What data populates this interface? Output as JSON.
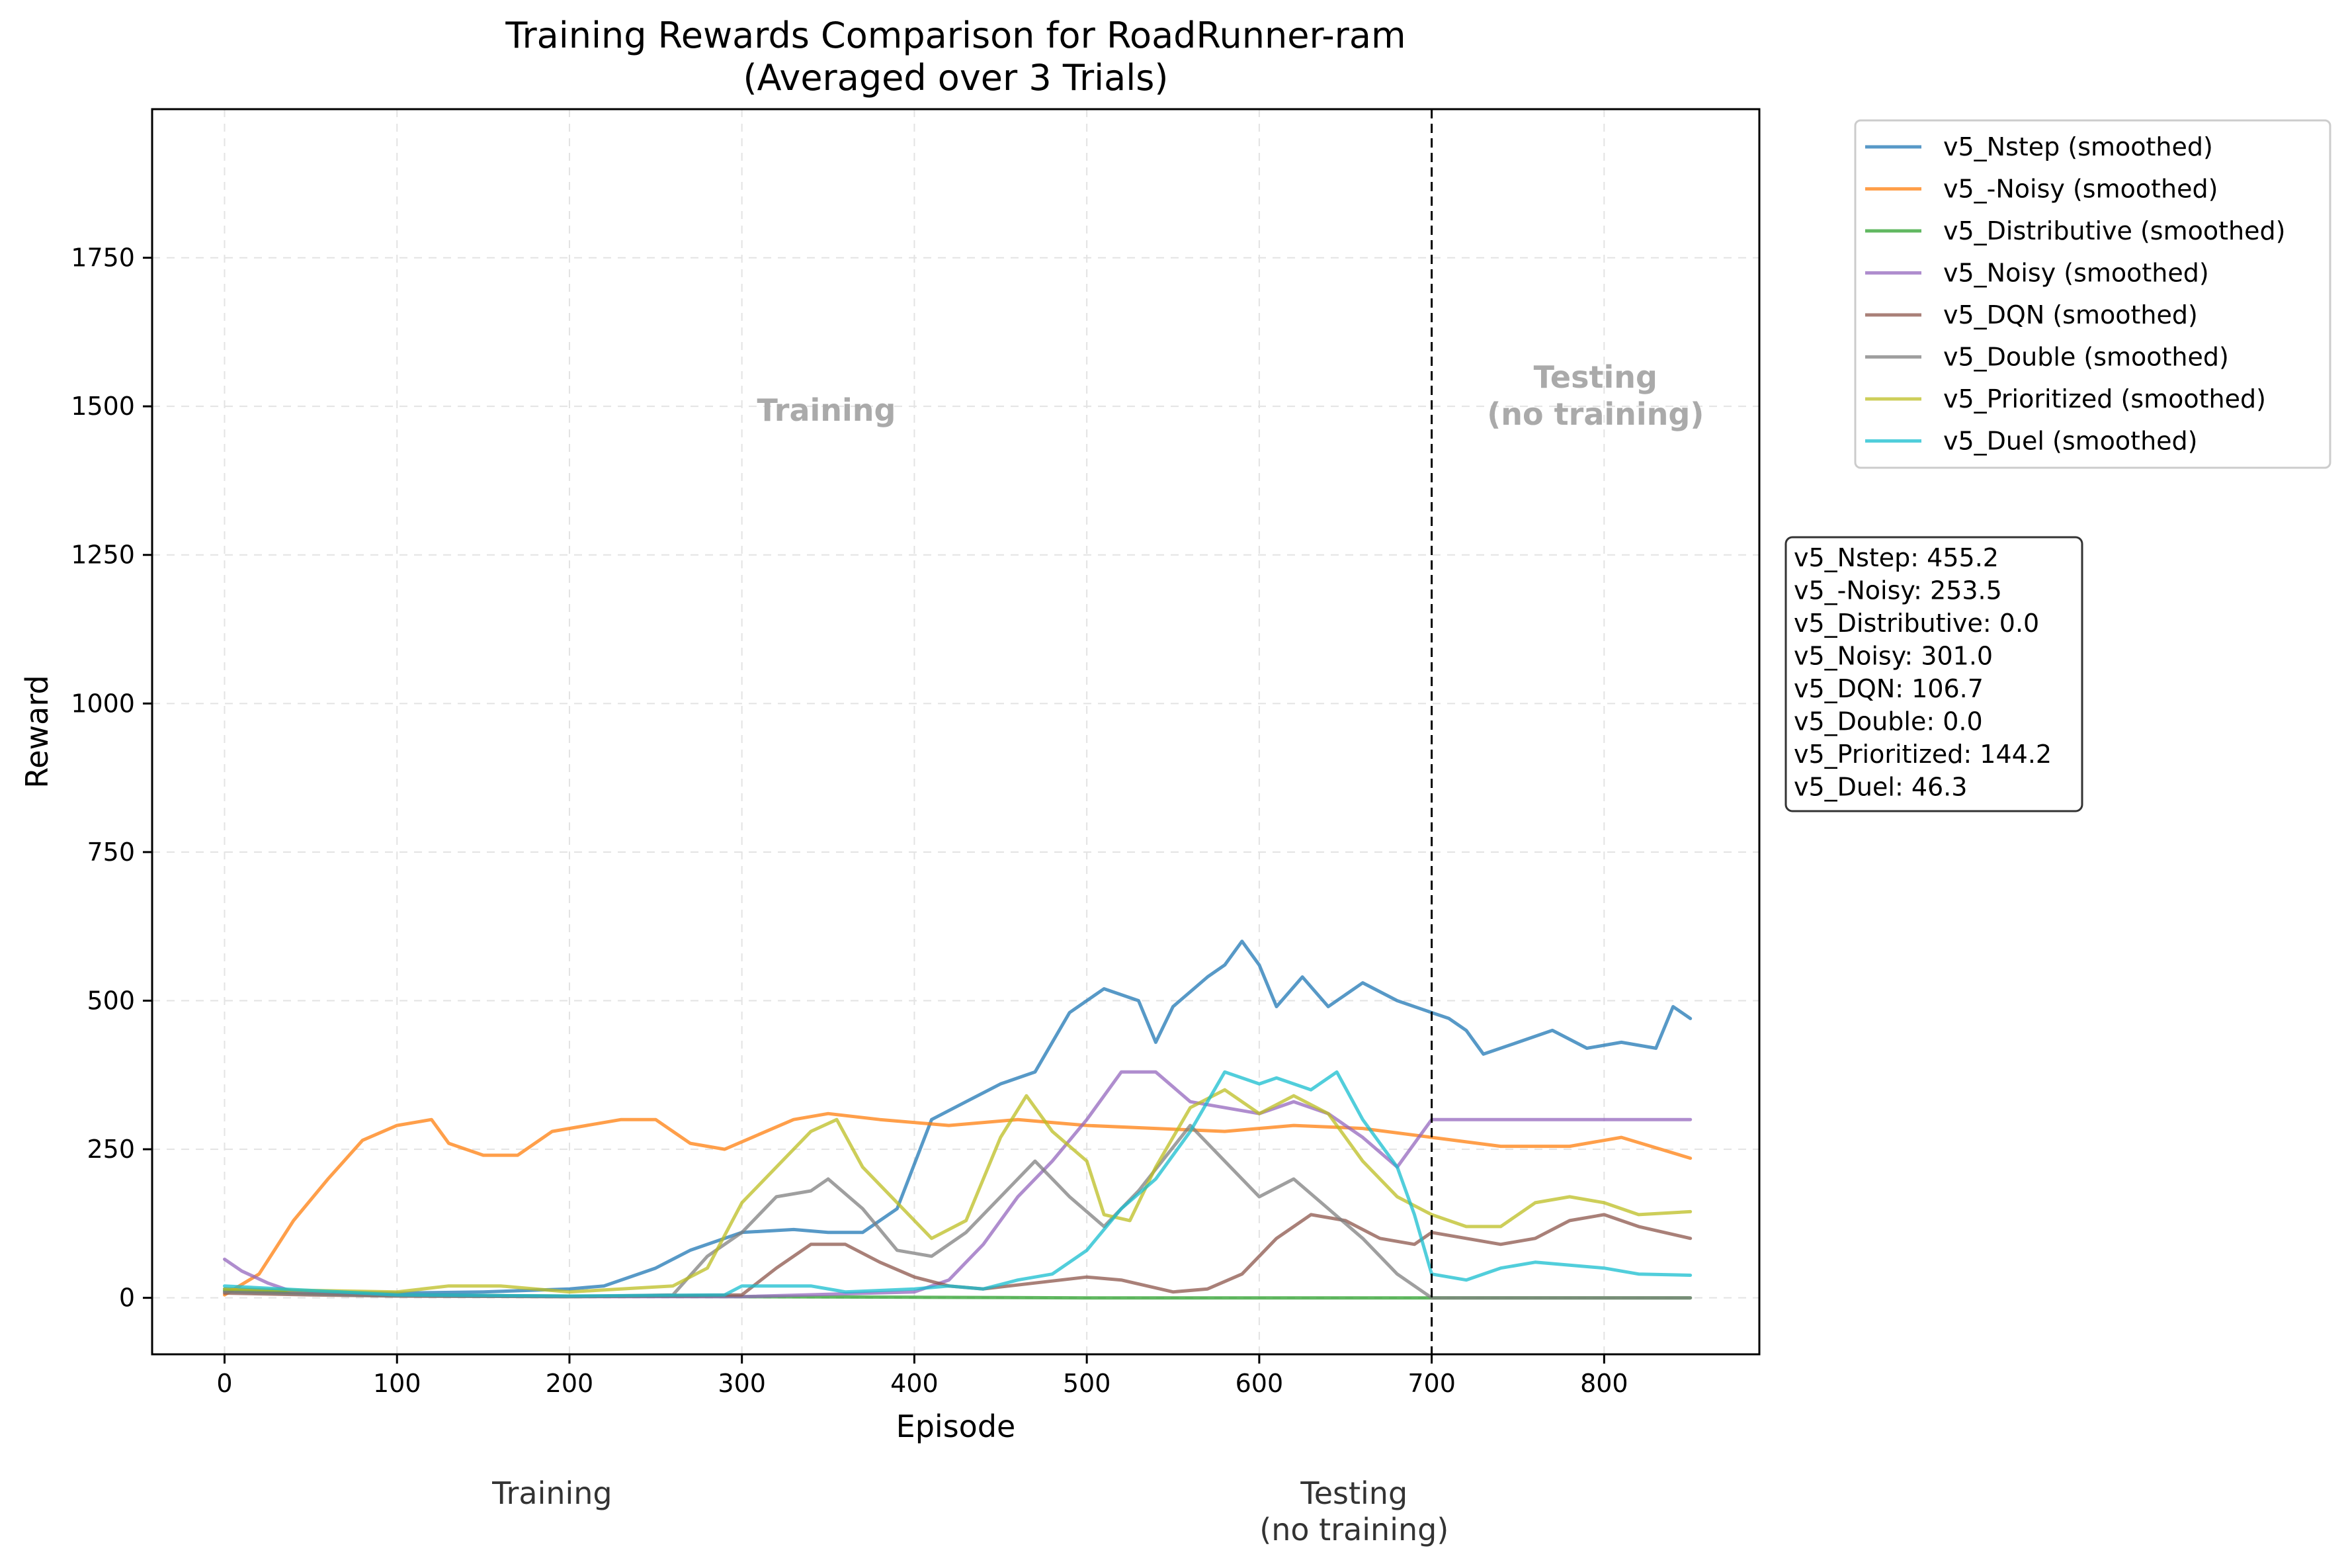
{
  "chart_data": {
    "type": "line",
    "title_line1": "Training Rewards Comparison for RoadRunner-ram",
    "title_line2": "(Averaged over 3 Trials)",
    "xlabel": "Episode",
    "ylabel": "Reward",
    "xlim": [
      -42,
      890
    ],
    "ylim": [
      -95,
      2000
    ],
    "xticks": [
      0,
      100,
      200,
      300,
      400,
      500,
      600,
      700,
      800
    ],
    "yticks": [
      0,
      250,
      500,
      750,
      1000,
      1250,
      1500,
      1750
    ],
    "grid": true,
    "divider_x": 700,
    "region_labels": {
      "training": "Training",
      "testing_line1": "Testing",
      "testing_line2": "(no training)"
    },
    "phase_labels": {
      "training": "Training",
      "testing_line1": "Testing",
      "testing_line2": "(no training)"
    },
    "legend_position": "outside upper right",
    "series": [
      {
        "name": "v5_Nstep (smoothed)",
        "color": "#1f77b4",
        "points": [
          [
            0,
            15
          ],
          [
            50,
            10
          ],
          [
            100,
            8
          ],
          [
            150,
            10
          ],
          [
            200,
            15
          ],
          [
            220,
            20
          ],
          [
            250,
            50
          ],
          [
            270,
            80
          ],
          [
            300,
            110
          ],
          [
            330,
            115
          ],
          [
            350,
            110
          ],
          [
            370,
            110
          ],
          [
            390,
            150
          ],
          [
            410,
            300
          ],
          [
            430,
            330
          ],
          [
            450,
            360
          ],
          [
            470,
            380
          ],
          [
            490,
            480
          ],
          [
            510,
            520
          ],
          [
            530,
            500
          ],
          [
            540,
            430
          ],
          [
            550,
            490
          ],
          [
            570,
            540
          ],
          [
            580,
            560
          ],
          [
            590,
            600
          ],
          [
            600,
            560
          ],
          [
            610,
            490
          ],
          [
            625,
            540
          ],
          [
            640,
            490
          ],
          [
            660,
            530
          ],
          [
            680,
            500
          ],
          [
            700,
            480
          ],
          [
            710,
            470
          ],
          [
            720,
            450
          ],
          [
            730,
            410
          ],
          [
            750,
            430
          ],
          [
            770,
            450
          ],
          [
            790,
            420
          ],
          [
            810,
            430
          ],
          [
            830,
            420
          ],
          [
            840,
            490
          ],
          [
            850,
            470
          ]
        ]
      },
      {
        "name": "v5_-Noisy (smoothed)",
        "color": "#ff7f0e",
        "points": [
          [
            0,
            5
          ],
          [
            20,
            40
          ],
          [
            40,
            130
          ],
          [
            60,
            200
          ],
          [
            80,
            265
          ],
          [
            100,
            290
          ],
          [
            120,
            300
          ],
          [
            130,
            260
          ],
          [
            150,
            240
          ],
          [
            170,
            240
          ],
          [
            190,
            280
          ],
          [
            210,
            290
          ],
          [
            230,
            300
          ],
          [
            250,
            300
          ],
          [
            270,
            260
          ],
          [
            290,
            250
          ],
          [
            310,
            275
          ],
          [
            330,
            300
          ],
          [
            350,
            310
          ],
          [
            380,
            300
          ],
          [
            420,
            290
          ],
          [
            460,
            300
          ],
          [
            500,
            290
          ],
          [
            540,
            285
          ],
          [
            580,
            280
          ],
          [
            620,
            290
          ],
          [
            660,
            285
          ],
          [
            700,
            270
          ],
          [
            740,
            255
          ],
          [
            780,
            255
          ],
          [
            810,
            270
          ],
          [
            850,
            235
          ]
        ]
      },
      {
        "name": "v5_Distributive (smoothed)",
        "color": "#2ca02c",
        "points": [
          [
            0,
            12
          ],
          [
            50,
            8
          ],
          [
            100,
            5
          ],
          [
            200,
            3
          ],
          [
            300,
            2
          ],
          [
            400,
            1
          ],
          [
            500,
            0
          ],
          [
            600,
            0
          ],
          [
            700,
            0
          ],
          [
            850,
            0
          ]
        ]
      },
      {
        "name": "v5_Noisy (smoothed)",
        "color": "#9467bd",
        "points": [
          [
            0,
            65
          ],
          [
            10,
            45
          ],
          [
            25,
            25
          ],
          [
            40,
            10
          ],
          [
            80,
            5
          ],
          [
            200,
            2
          ],
          [
            300,
            2
          ],
          [
            400,
            10
          ],
          [
            420,
            30
          ],
          [
            440,
            90
          ],
          [
            460,
            170
          ],
          [
            480,
            230
          ],
          [
            500,
            300
          ],
          [
            520,
            380
          ],
          [
            540,
            380
          ],
          [
            560,
            330
          ],
          [
            580,
            320
          ],
          [
            600,
            310
          ],
          [
            620,
            330
          ],
          [
            640,
            310
          ],
          [
            660,
            270
          ],
          [
            680,
            220
          ],
          [
            700,
            300
          ],
          [
            850,
            300
          ]
        ]
      },
      {
        "name": "v5_DQN (smoothed)",
        "color": "#8c564b",
        "points": [
          [
            0,
            8
          ],
          [
            50,
            5
          ],
          [
            100,
            3
          ],
          [
            200,
            2
          ],
          [
            300,
            5
          ],
          [
            320,
            50
          ],
          [
            340,
            90
          ],
          [
            360,
            90
          ],
          [
            380,
            60
          ],
          [
            400,
            35
          ],
          [
            420,
            20
          ],
          [
            440,
            15
          ],
          [
            470,
            25
          ],
          [
            500,
            35
          ],
          [
            520,
            30
          ],
          [
            550,
            10
          ],
          [
            570,
            15
          ],
          [
            590,
            40
          ],
          [
            610,
            100
          ],
          [
            630,
            140
          ],
          [
            650,
            130
          ],
          [
            670,
            100
          ],
          [
            690,
            90
          ],
          [
            700,
            110
          ],
          [
            720,
            100
          ],
          [
            740,
            90
          ],
          [
            760,
            100
          ],
          [
            780,
            130
          ],
          [
            800,
            140
          ],
          [
            820,
            120
          ],
          [
            850,
            100
          ]
        ]
      },
      {
        "name": "v5_Double (smoothed)",
        "color": "#7f7f7f",
        "points": [
          [
            0,
            10
          ],
          [
            100,
            3
          ],
          [
            200,
            2
          ],
          [
            260,
            5
          ],
          [
            280,
            70
          ],
          [
            300,
            110
          ],
          [
            320,
            170
          ],
          [
            340,
            180
          ],
          [
            350,
            200
          ],
          [
            370,
            150
          ],
          [
            390,
            80
          ],
          [
            410,
            70
          ],
          [
            430,
            110
          ],
          [
            450,
            170
          ],
          [
            470,
            230
          ],
          [
            490,
            170
          ],
          [
            510,
            120
          ],
          [
            530,
            180
          ],
          [
            560,
            290
          ],
          [
            580,
            230
          ],
          [
            600,
            170
          ],
          [
            620,
            200
          ],
          [
            640,
            150
          ],
          [
            660,
            100
          ],
          [
            680,
            40
          ],
          [
            700,
            0
          ],
          [
            850,
            0
          ]
        ]
      },
      {
        "name": "v5_Prioritized (smoothed)",
        "color": "#bcbd22",
        "points": [
          [
            0,
            15
          ],
          [
            100,
            10
          ],
          [
            130,
            20
          ],
          [
            160,
            20
          ],
          [
            200,
            10
          ],
          [
            260,
            20
          ],
          [
            280,
            50
          ],
          [
            300,
            160
          ],
          [
            320,
            220
          ],
          [
            340,
            280
          ],
          [
            355,
            300
          ],
          [
            370,
            220
          ],
          [
            390,
            160
          ],
          [
            410,
            100
          ],
          [
            430,
            130
          ],
          [
            450,
            270
          ],
          [
            465,
            340
          ],
          [
            480,
            280
          ],
          [
            500,
            230
          ],
          [
            510,
            140
          ],
          [
            525,
            130
          ],
          [
            540,
            220
          ],
          [
            560,
            320
          ],
          [
            580,
            350
          ],
          [
            600,
            310
          ],
          [
            620,
            340
          ],
          [
            640,
            310
          ],
          [
            660,
            230
          ],
          [
            680,
            170
          ],
          [
            700,
            140
          ],
          [
            720,
            120
          ],
          [
            740,
            120
          ],
          [
            760,
            160
          ],
          [
            780,
            170
          ],
          [
            800,
            160
          ],
          [
            820,
            140
          ],
          [
            850,
            145
          ]
        ]
      },
      {
        "name": "v5_Duel (smoothed)",
        "color": "#17becf",
        "points": [
          [
            0,
            20
          ],
          [
            100,
            5
          ],
          [
            200,
            3
          ],
          [
            290,
            5
          ],
          [
            300,
            20
          ],
          [
            340,
            20
          ],
          [
            360,
            10
          ],
          [
            400,
            15
          ],
          [
            420,
            20
          ],
          [
            440,
            15
          ],
          [
            460,
            30
          ],
          [
            480,
            40
          ],
          [
            500,
            80
          ],
          [
            520,
            150
          ],
          [
            540,
            200
          ],
          [
            560,
            280
          ],
          [
            580,
            380
          ],
          [
            600,
            360
          ],
          [
            610,
            370
          ],
          [
            630,
            350
          ],
          [
            645,
            380
          ],
          [
            660,
            300
          ],
          [
            680,
            220
          ],
          [
            690,
            140
          ],
          [
            700,
            40
          ],
          [
            720,
            30
          ],
          [
            740,
            50
          ],
          [
            760,
            60
          ],
          [
            780,
            55
          ],
          [
            800,
            50
          ],
          [
            820,
            40
          ],
          [
            850,
            38
          ]
        ]
      }
    ],
    "final_stats": [
      "v5_Nstep: 455.2",
      "v5_-Noisy: 253.5",
      "v5_Distributive: 0.0",
      "v5_Noisy: 301.0",
      "v5_DQN: 106.7",
      "v5_Double: 0.0",
      "v5_Prioritized: 144.2",
      "v5_Duel: 46.3"
    ]
  }
}
